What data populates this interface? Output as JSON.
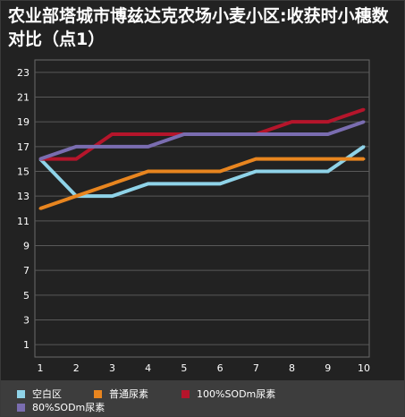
{
  "chart_data": {
    "type": "line",
    "title": "农业部塔城市博兹达克农场小麦小区:收获时小穗数对比（点1）",
    "x": [
      "1",
      "2",
      "3",
      "4",
      "5",
      "6",
      "7",
      "8",
      "9",
      "10"
    ],
    "yticks": [
      "1",
      "3",
      "5",
      "7",
      "9",
      "11",
      "13",
      "15",
      "17",
      "19",
      "21",
      "23"
    ],
    "ylim": [
      0,
      24
    ],
    "grid": true,
    "legend_position": "bottom",
    "series": [
      {
        "name": "空白区",
        "color": "#8fd3e8",
        "values": [
          16,
          13,
          13,
          14,
          14,
          14,
          15,
          15,
          15,
          17
        ]
      },
      {
        "name": "普通尿素",
        "color": "#e8851f",
        "values": [
          12,
          13,
          14,
          15,
          15,
          15,
          16,
          16,
          16,
          16
        ]
      },
      {
        "name": "100%SODm尿素",
        "color": "#b5152b",
        "values": [
          16,
          16,
          18,
          18,
          18,
          18,
          18,
          19,
          19,
          20
        ]
      },
      {
        "name": "80%SODm尿素",
        "color": "#7a6db0",
        "values": [
          16,
          17,
          17,
          17,
          18,
          18,
          18,
          18,
          18,
          19
        ]
      }
    ]
  }
}
